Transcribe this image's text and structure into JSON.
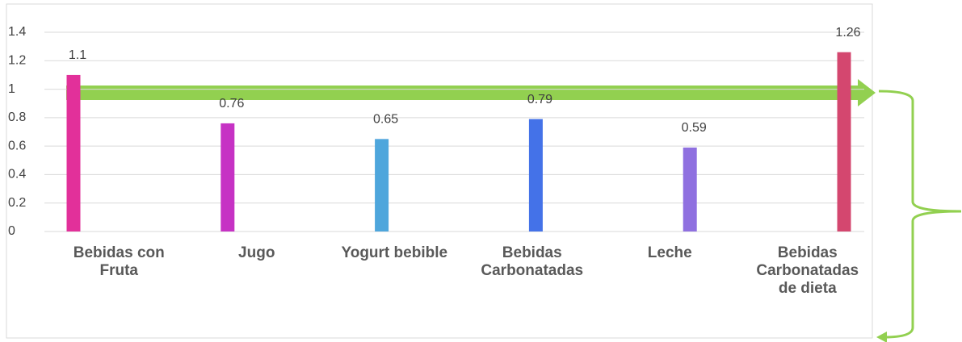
{
  "chart_data": {
    "type": "bar",
    "categories": [
      "Bebidas con Fruta",
      "Jugo",
      "Yogurt bebible",
      "Bebidas Carbonatadas",
      "Leche",
      "Bebidas Carbonatadas de dieta"
    ],
    "values": [
      1.1,
      0.76,
      0.65,
      0.79,
      0.59,
      1.26
    ],
    "colors": [
      "#e2309a",
      "#c632c4",
      "#4ea6dc",
      "#4472e8",
      "#8f70e0",
      "#d4476f"
    ],
    "ylim": [
      0,
      1.4
    ],
    "yticks": [
      0,
      0.2,
      0.4,
      0.6,
      0.8,
      1,
      1.2,
      1.4
    ],
    "grid": true
  }
}
